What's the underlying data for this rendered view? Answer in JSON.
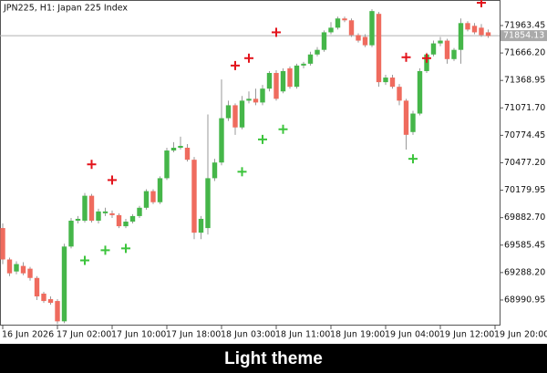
{
  "chart_data": {
    "type": "candlestick",
    "title": "JPN225, H1:  Japan 225 Index",
    "caption": "Light theme",
    "categories": [
      "16 Jun 2026",
      null,
      null,
      null,
      null,
      null,
      null,
      null,
      "17 Jun 02:00",
      null,
      null,
      null,
      null,
      null,
      null,
      null,
      "17 Jun 10:00",
      null,
      null,
      null,
      null,
      null,
      null,
      null,
      "17 Jun 18:00",
      null,
      null,
      null,
      null,
      null,
      null,
      null,
      "18 Jun 03:00",
      null,
      null,
      null,
      null,
      null,
      null,
      null,
      "18 Jun 11:00",
      null,
      null,
      null,
      null,
      null,
      null,
      null,
      "18 Jun 19:00",
      null,
      null,
      null,
      null,
      null,
      null,
      null,
      "19 Jun 04:00",
      null,
      null,
      null,
      null,
      null,
      null,
      null,
      "19 Jun 12:00",
      null,
      null,
      null,
      null,
      null,
      null,
      null,
      "19 Jun 20:00"
    ],
    "open": [
      69770,
      69430,
      69300,
      69360,
      69330,
      69230,
      69060,
      69000,
      68980,
      68760,
      69570,
      69850,
      69850,
      70120,
      69850,
      69930,
      69930,
      69910,
      69790,
      69840,
      69900,
      69990,
      70170,
      70050,
      70310,
      70610,
      70640,
      70640,
      70510,
      69720,
      69770,
      70310,
      70480,
      70960,
      71100,
      70860,
      71150,
      71170,
      71130,
      71280,
      71450,
      71250,
      71500,
      71300,
      71530,
      71550,
      71650,
      71700,
      71890,
      71940,
      72040,
      72020,
      71860,
      71840,
      71750,
      72090,
      71350,
      71400,
      71300,
      71150,
      70810,
      71010,
      71470,
      71650,
      71770,
      71800,
      71600,
      71700,
      71990,
      71960,
      71940,
      71890,
      null
    ],
    "high": [
      69820,
      69450,
      69410,
      69400,
      69350,
      69250,
      69080,
      69030,
      69000,
      69600,
      69880,
      69900,
      70150,
      70140,
      69980,
      69990,
      69960,
      69930,
      69870,
      69920,
      70010,
      70190,
      70190,
      70330,
      70640,
      70700,
      70760,
      70680,
      70540,
      69900,
      71000,
      70520,
      71380,
      71150,
      71120,
      71200,
      71250,
      71280,
      71320,
      71470,
      71480,
      71500,
      71520,
      71550,
      71570,
      71680,
      71730,
      71910,
      72000,
      72060,
      72060,
      72040,
      71880,
      71870,
      72140,
      72110,
      71430,
      71430,
      71330,
      71170,
      71040,
      71500,
      71670,
      71800,
      71840,
      71820,
      71720,
      72040,
      72010,
      71990,
      71980,
      71920,
      null
    ],
    "low": [
      69380,
      69250,
      69270,
      69260,
      69200,
      68990,
      68960,
      68940,
      68730,
      68740,
      69550,
      69820,
      69830,
      69830,
      69820,
      69900,
      69880,
      69770,
      69770,
      69820,
      69880,
      69970,
      70030,
      70030,
      70290,
      70590,
      70620,
      70490,
      69650,
      69650,
      69700,
      70280,
      70450,
      70930,
      70780,
      70840,
      71120,
      71100,
      71100,
      71250,
      71150,
      71230,
      71280,
      71280,
      71500,
      71530,
      71630,
      71680,
      71870,
      71920,
      72000,
      71840,
      71780,
      71730,
      71730,
      71300,
      71320,
      71280,
      71100,
      70620,
      70780,
      70990,
      71450,
      71630,
      71740,
      71550,
      71580,
      71550,
      71900,
      71870,
      71840,
      71830,
      null
    ],
    "close": [
      69430,
      69280,
      69380,
      69280,
      69230,
      69030,
      68980,
      68960,
      68760,
      69570,
      69850,
      69870,
      70120,
      69850,
      69950,
      69950,
      69910,
      69790,
      69840,
      69900,
      69990,
      70170,
      70050,
      70310,
      70610,
      70640,
      70660,
      70510,
      69720,
      69870,
      70310,
      70480,
      70960,
      71100,
      70860,
      71150,
      71170,
      71130,
      71280,
      71450,
      71170,
      71470,
      71300,
      71530,
      71550,
      71650,
      71700,
      71890,
      71940,
      72040,
      72020,
      71860,
      71800,
      71750,
      72120,
      71350,
      71400,
      71300,
      71150,
      70780,
      71010,
      71470,
      71650,
      71770,
      71800,
      71600,
      71700,
      71990,
      71920,
      71890,
      71860,
      71850,
      null
    ],
    "sell_signals": [
      null,
      null,
      null,
      null,
      null,
      null,
      null,
      null,
      null,
      null,
      null,
      null,
      null,
      70460,
      null,
      null,
      70290,
      null,
      null,
      null,
      null,
      null,
      null,
      null,
      null,
      null,
      null,
      null,
      null,
      null,
      null,
      null,
      null,
      null,
      71530,
      null,
      71610,
      null,
      null,
      null,
      71890,
      null,
      null,
      null,
      null,
      null,
      null,
      null,
      null,
      null,
      null,
      null,
      null,
      null,
      null,
      null,
      null,
      null,
      null,
      71620,
      null,
      null,
      71610,
      null,
      null,
      null,
      null,
      null,
      null,
      null,
      72210,
      null,
      null
    ],
    "buy_signals": [
      null,
      null,
      null,
      null,
      null,
      null,
      null,
      null,
      null,
      null,
      null,
      null,
      69420,
      null,
      null,
      69530,
      null,
      null,
      69550,
      null,
      null,
      null,
      null,
      null,
      null,
      null,
      null,
      null,
      null,
      null,
      null,
      null,
      null,
      null,
      null,
      70380,
      null,
      null,
      70730,
      null,
      null,
      70840,
      null,
      null,
      null,
      null,
      null,
      null,
      null,
      null,
      null,
      null,
      null,
      null,
      null,
      null,
      null,
      null,
      null,
      null,
      70520,
      null,
      null,
      null,
      null,
      null,
      null,
      null,
      null,
      null,
      null,
      null,
      null
    ],
    "up_color": "#45b649",
    "down_color": "#ef6b5e",
    "sell_color": "#e3141c",
    "buy_color": "#3cc43c",
    "current_price": 71854.13,
    "ylim": [
      68714,
      72240
    ],
    "yticks": [
      71963.45,
      {
        "value": 71666.2,
        "label": "71666.20"
      },
      71368.95,
      {
        "value": 71071.7,
        "label": "71071.70"
      },
      70774.45,
      {
        "value": 70477.2,
        "label": "70477.20"
      },
      70179.95,
      {
        "value": 69882.7,
        "label": "69882.70"
      },
      69585.45,
      {
        "value": 69288.2,
        "label": "69288.20"
      },
      68990.95
    ]
  }
}
